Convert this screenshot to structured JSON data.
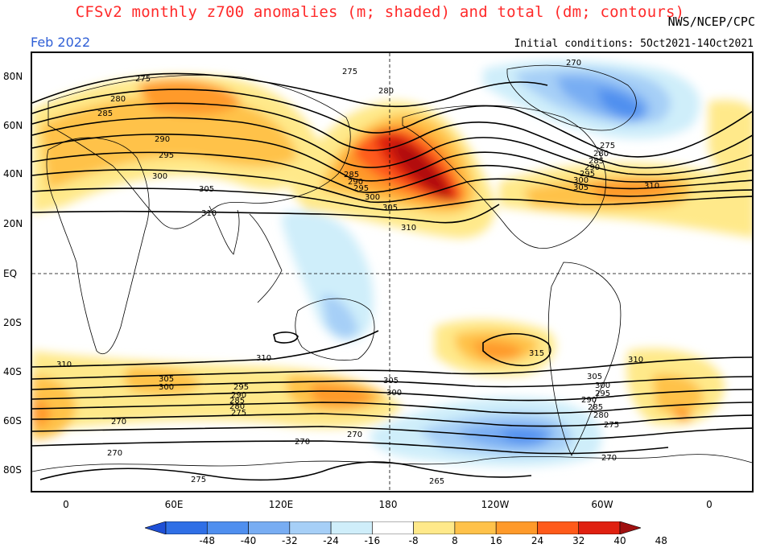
{
  "title": "CFSv2 monthly z700 anomalies (m; shaded) and total (dm; contours)",
  "agency": "NWS/NCEP/CPC",
  "month": "Feb 2022",
  "initial_conditions": "Initial conditions: 5Oct2021-14Oct2021",
  "lat_labels": [
    "80N",
    "60N",
    "40N",
    "20N",
    "EQ",
    "20S",
    "40S",
    "60S",
    "80S"
  ],
  "lon_labels": [
    "0",
    "60E",
    "120E",
    "180",
    "120W",
    "60W",
    "0"
  ],
  "colorbar": {
    "ticks": [
      "-48",
      "-40",
      "-32",
      "-24",
      "-16",
      "-8",
      "8",
      "16",
      "24",
      "32",
      "40",
      "48"
    ],
    "colors": [
      "#1e4fd6",
      "#2f6fe6",
      "#4f8fef",
      "#78adf3",
      "#a6cff7",
      "#cfeefa",
      "#ffffff",
      "#ffe98a",
      "#ffc24a",
      "#ff9a2a",
      "#ff5a1a",
      "#e02010",
      "#a01010"
    ]
  },
  "contour_labels": {
    "l270a": "270",
    "l275a": "275",
    "l280a": "280",
    "l285a": "285",
    "l290a": "290",
    "l295a": "295",
    "l300a": "300",
    "l305a": "305",
    "l310a": "310",
    "l275b": "275",
    "l280b": "280",
    "l285b": "285",
    "l290b": "290",
    "l295b": "295",
    "l300b": "300",
    "l305b": "305",
    "l310b": "310",
    "l310c": "310",
    "l305c": "305",
    "l300c": "300",
    "l295c": "295",
    "l290c": "290",
    "l285c": "285",
    "l270n": "270",
    "l275n": "275",
    "l280n": "280",
    "l310s1": "310",
    "l310s2": "310",
    "l310s3": "310",
    "l315s": "315",
    "l305s1": "305",
    "l300s1": "300",
    "l295s1": "295",
    "l290s1": "290",
    "l285s1": "285",
    "l280s1": "280",
    "l275s1": "275",
    "l305s2": "305",
    "l300s2": "300",
    "l305s3": "305",
    "l300s3": "300",
    "l295s3": "295",
    "l290s3": "290",
    "l285s3": "285",
    "l280s3": "280",
    "l275s3": "275",
    "l270s1": "270",
    "l270s2": "270",
    "l270s3": "270",
    "l270s4": "270",
    "l275s4": "275",
    "l265s": "265",
    "l270s5": "270"
  }
}
